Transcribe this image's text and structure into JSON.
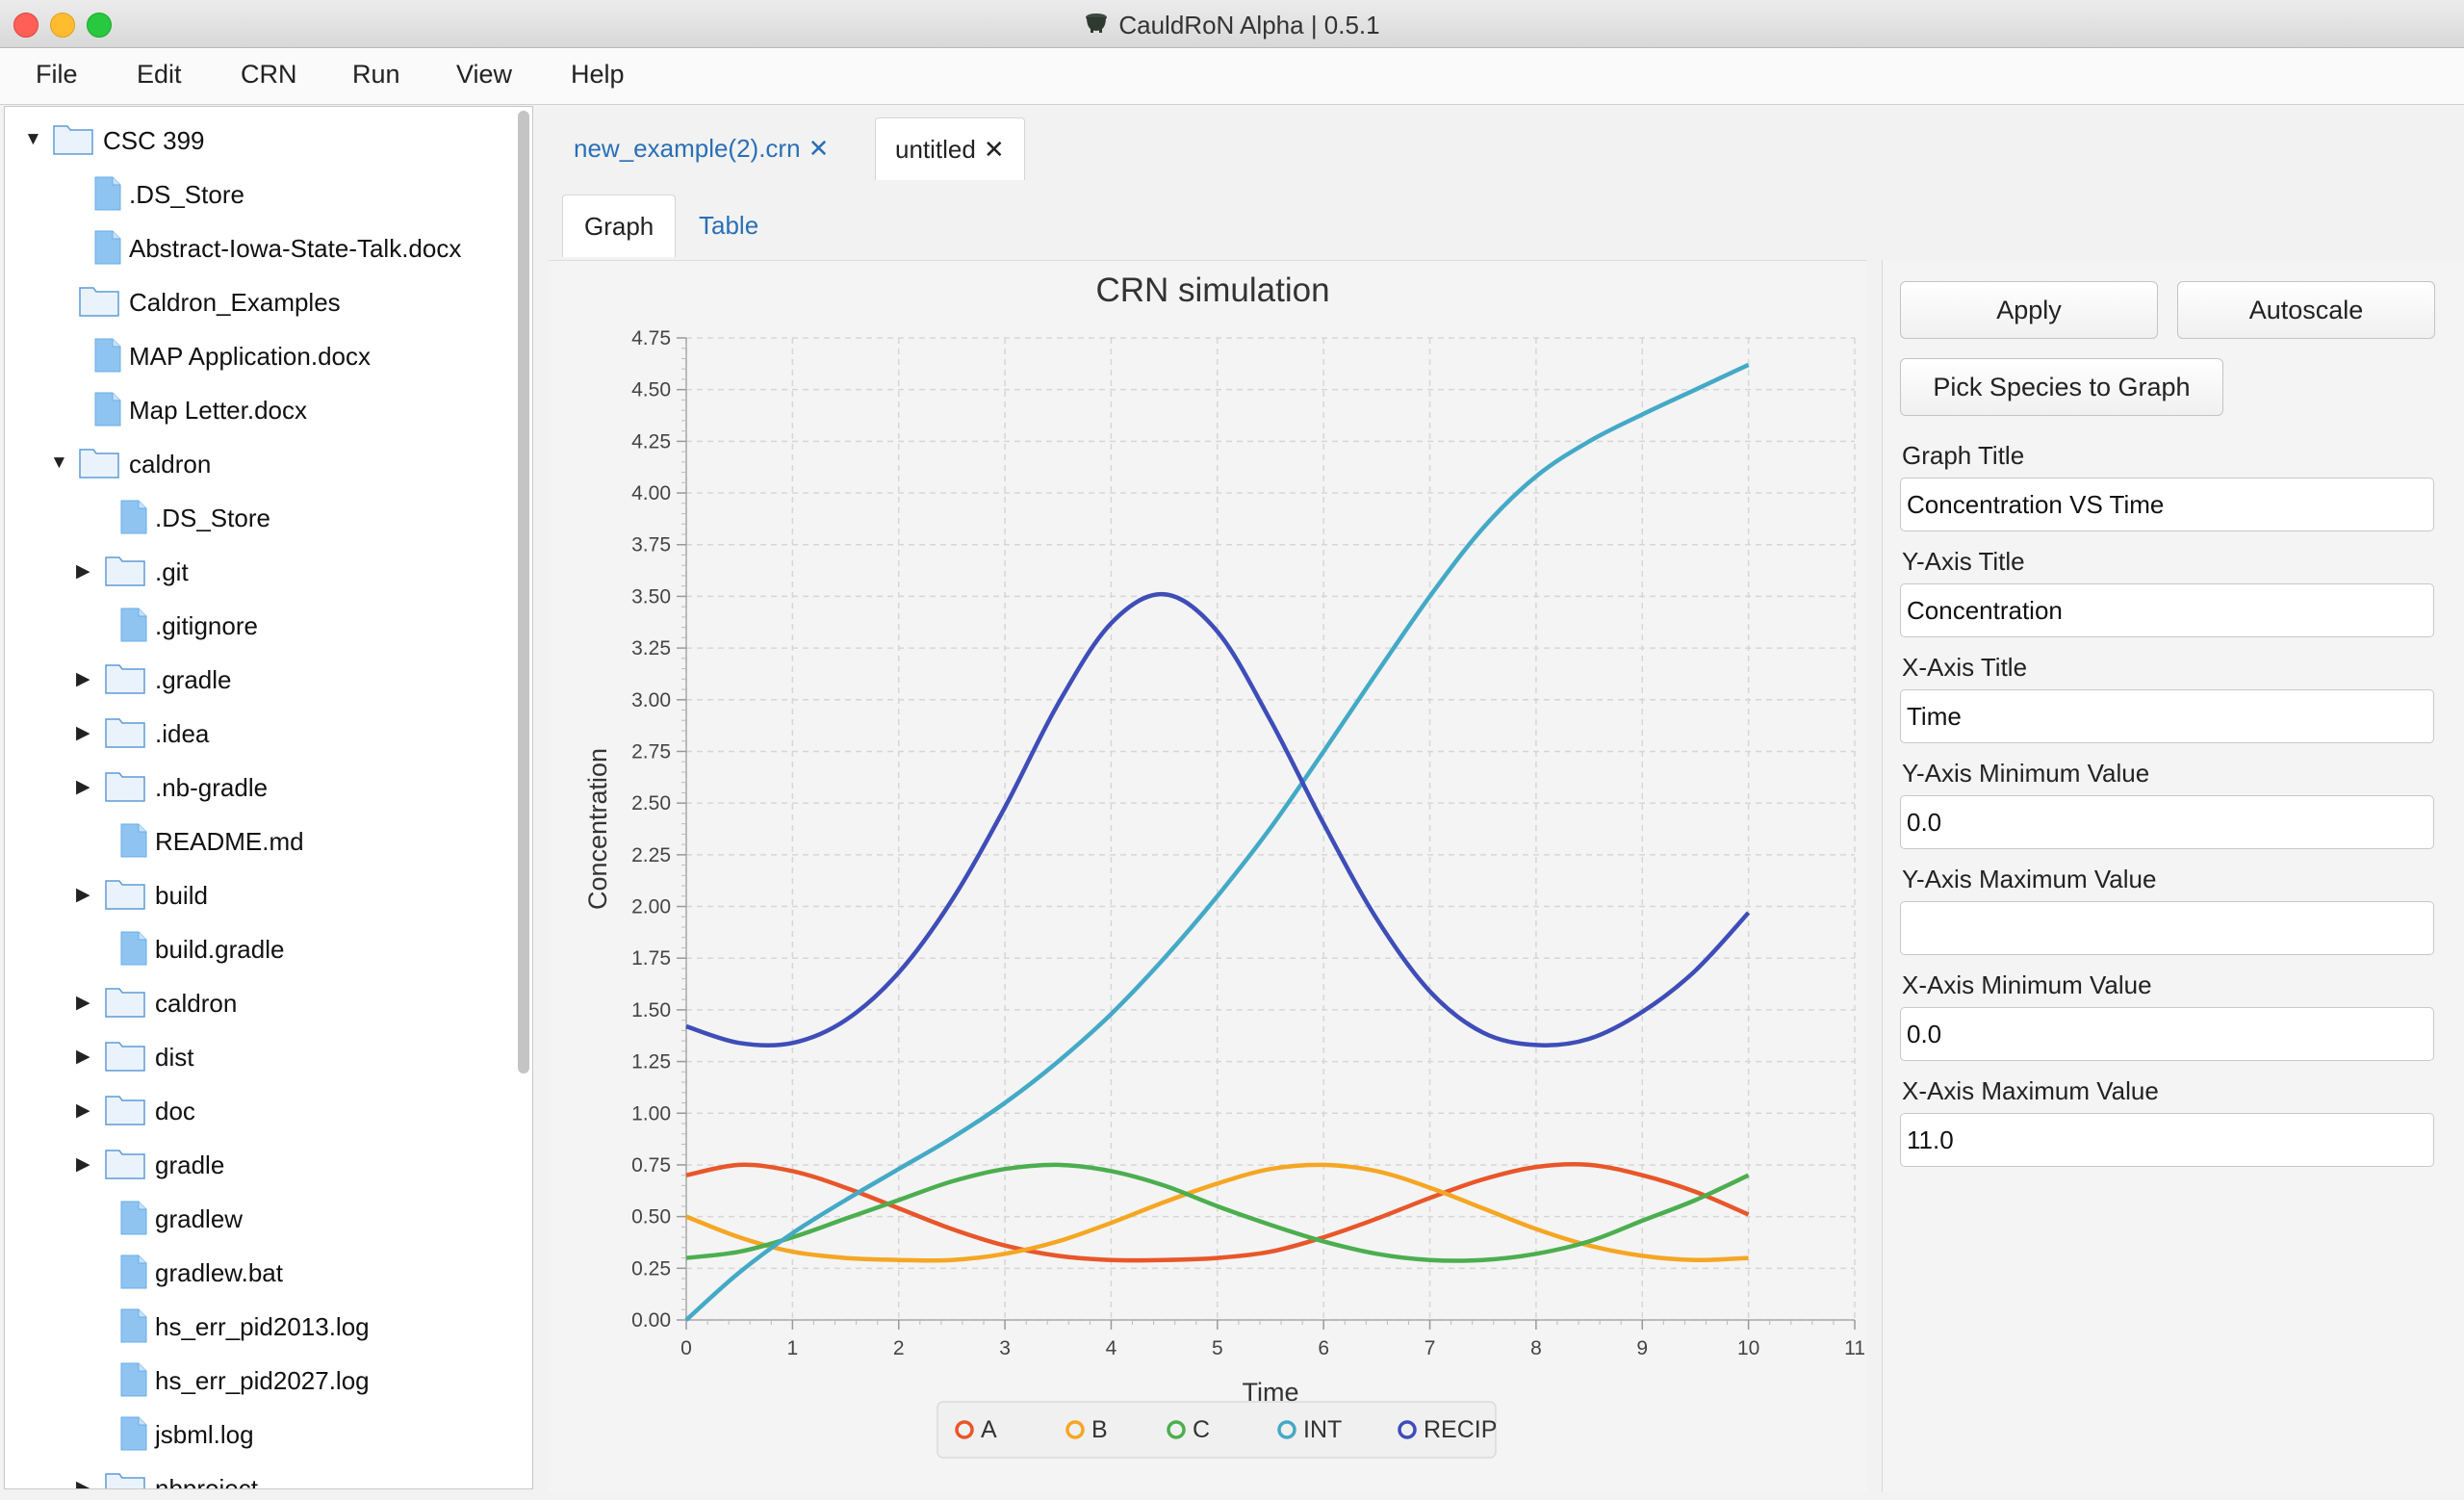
{
  "window": {
    "title": "CauldRoN Alpha | 0.5.1"
  },
  "menu": [
    "File",
    "Edit",
    "CRN",
    "Run",
    "View",
    "Help"
  ],
  "file_tree": [
    {
      "label": "CSC 399",
      "type": "folder",
      "depth": 0,
      "expanded": true
    },
    {
      "label": ".DS_Store",
      "type": "file",
      "depth": 1
    },
    {
      "label": "Abstract-Iowa-State-Talk.docx",
      "type": "file",
      "depth": 1
    },
    {
      "label": "Caldron_Examples",
      "type": "folder",
      "depth": 1
    },
    {
      "label": "MAP Application.docx",
      "type": "file",
      "depth": 1
    },
    {
      "label": "Map Letter.docx",
      "type": "file",
      "depth": 1
    },
    {
      "label": "caldron",
      "type": "folder",
      "depth": 1,
      "expanded": true
    },
    {
      "label": ".DS_Store",
      "type": "file",
      "depth": 2
    },
    {
      "label": ".git",
      "type": "folder",
      "depth": 2,
      "collapsed": true
    },
    {
      "label": ".gitignore",
      "type": "file",
      "depth": 2
    },
    {
      "label": ".gradle",
      "type": "folder",
      "depth": 2,
      "collapsed": true
    },
    {
      "label": ".idea",
      "type": "folder",
      "depth": 2,
      "collapsed": true
    },
    {
      "label": ".nb-gradle",
      "type": "folder",
      "depth": 2,
      "collapsed": true
    },
    {
      "label": "README.md",
      "type": "file",
      "depth": 2
    },
    {
      "label": "build",
      "type": "folder",
      "depth": 2,
      "collapsed": true
    },
    {
      "label": "build.gradle",
      "type": "file",
      "depth": 2
    },
    {
      "label": "caldron",
      "type": "folder",
      "depth": 2,
      "collapsed": true
    },
    {
      "label": "dist",
      "type": "folder",
      "depth": 2,
      "collapsed": true
    },
    {
      "label": "doc",
      "type": "folder",
      "depth": 2,
      "collapsed": true
    },
    {
      "label": "gradle",
      "type": "folder",
      "depth": 2,
      "collapsed": true
    },
    {
      "label": "gradlew",
      "type": "file",
      "depth": 2
    },
    {
      "label": "gradlew.bat",
      "type": "file",
      "depth": 2
    },
    {
      "label": "hs_err_pid2013.log",
      "type": "file",
      "depth": 2
    },
    {
      "label": "hs_err_pid2027.log",
      "type": "file",
      "depth": 2
    },
    {
      "label": "jsbml.log",
      "type": "file",
      "depth": 2
    },
    {
      "label": "nbproject",
      "type": "folder",
      "depth": 2,
      "collapsed": true
    }
  ],
  "file_tabs": [
    {
      "label": "new_example(2).crn",
      "close": "✕",
      "active": false
    },
    {
      "label": "untitled",
      "close": "✕",
      "active": true
    }
  ],
  "view_tabs": {
    "graph": "Graph",
    "table": "Table"
  },
  "settings": {
    "apply": "Apply",
    "autoscale": "Autoscale",
    "pick_species": "Pick Species to Graph",
    "graph_title_label": "Graph Title",
    "graph_title_value": "Concentration VS Time",
    "y_title_label": "Y-Axis Title",
    "y_title_value": "Concentration",
    "x_title_label": "X-Axis Title",
    "x_title_value": "Time",
    "y_min_label": "Y-Axis Minimum Value",
    "y_min_value": "0.0",
    "y_max_label": "Y-Axis Maximum Value",
    "y_max_value": "",
    "x_min_label": "X-Axis Minimum Value",
    "x_min_value": "0.0",
    "x_max_label": "X-Axis Maximum Value",
    "x_max_value": "11.0"
  },
  "colors": {
    "A": "#e8562a",
    "B": "#f5a623",
    "C": "#4cae4f",
    "INT": "#44a9c6",
    "RECIP": "#3e4db8"
  },
  "chart_data": {
    "type": "line",
    "title": "CRN simulation",
    "xlabel": "Time",
    "ylabel": "Concentration",
    "xlim": [
      0,
      11
    ],
    "ylim": [
      0,
      4.75
    ],
    "xticks": [
      "0",
      "1",
      "2",
      "3",
      "4",
      "5",
      "6",
      "7",
      "8",
      "9",
      "10",
      "11"
    ],
    "yticks": [
      "0.00",
      "0.25",
      "0.50",
      "0.75",
      "1.00",
      "1.25",
      "1.50",
      "1.75",
      "2.00",
      "2.25",
      "2.50",
      "2.75",
      "3.00",
      "3.25",
      "3.50",
      "3.75",
      "4.00",
      "4.25",
      "4.50",
      "4.75"
    ],
    "grid": true,
    "legend_position": "bottom",
    "x": [
      0,
      0.5,
      1,
      1.5,
      2,
      2.5,
      3,
      3.5,
      4,
      4.5,
      5,
      5.5,
      6,
      6.5,
      7,
      7.5,
      8,
      8.5,
      9,
      9.5,
      10
    ],
    "series": [
      {
        "name": "A",
        "values": [
          0.7,
          0.75,
          0.72,
          0.64,
          0.54,
          0.44,
          0.36,
          0.31,
          0.29,
          0.29,
          0.3,
          0.33,
          0.4,
          0.49,
          0.59,
          0.68,
          0.74,
          0.75,
          0.7,
          0.62,
          0.51
        ]
      },
      {
        "name": "B",
        "values": [
          0.5,
          0.4,
          0.33,
          0.3,
          0.29,
          0.29,
          0.32,
          0.38,
          0.47,
          0.57,
          0.66,
          0.73,
          0.75,
          0.72,
          0.64,
          0.54,
          0.44,
          0.36,
          0.31,
          0.29,
          0.3
        ]
      },
      {
        "name": "C",
        "values": [
          0.3,
          0.33,
          0.4,
          0.49,
          0.58,
          0.67,
          0.73,
          0.75,
          0.72,
          0.65,
          0.55,
          0.46,
          0.38,
          0.32,
          0.29,
          0.29,
          0.32,
          0.38,
          0.48,
          0.58,
          0.7
        ]
      },
      {
        "name": "INT",
        "values": [
          0.0,
          0.23,
          0.42,
          0.58,
          0.73,
          0.88,
          1.05,
          1.25,
          1.48,
          1.75,
          2.05,
          2.38,
          2.75,
          3.13,
          3.5,
          3.83,
          4.08,
          4.25,
          4.38,
          4.5,
          4.62
        ]
      },
      {
        "name": "RECIP",
        "values": [
          1.42,
          1.34,
          1.34,
          1.45,
          1.68,
          2.03,
          2.48,
          2.98,
          3.37,
          3.51,
          3.33,
          2.9,
          2.4,
          1.94,
          1.59,
          1.39,
          1.33,
          1.36,
          1.49,
          1.69,
          1.97
        ]
      }
    ]
  }
}
